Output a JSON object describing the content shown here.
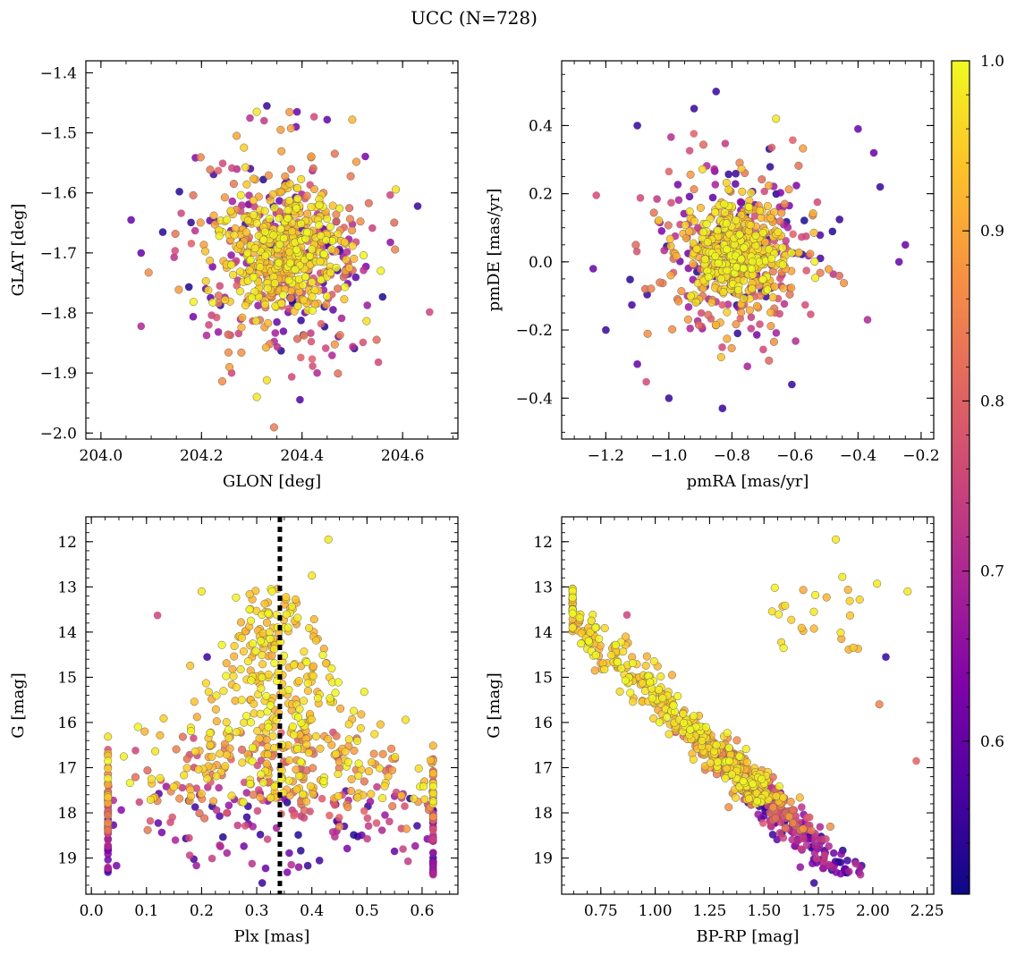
{
  "figure": {
    "title": "UCC (N=728)"
  },
  "colorbar": {
    "colormap": "plasma",
    "vmin": 0.51,
    "vmax": 1.0,
    "tick_labels": [
      "0.6",
      "0.7",
      "0.8",
      "0.9",
      "1.0"
    ],
    "ticks": [
      0.6,
      0.7,
      0.8,
      0.9,
      1.0
    ]
  },
  "chart_data": [
    {
      "type": "scatter",
      "id": "sky",
      "xlabel": "GLON [deg]",
      "ylabel": "GLAT [deg]",
      "xlim": [
        203.97,
        204.71
      ],
      "ylim": [
        -2.01,
        -1.38
      ],
      "xticks": [
        204.0,
        204.2,
        204.4,
        204.6
      ],
      "xtick_labels": [
        "204.0",
        "204.2",
        "204.4",
        "204.6"
      ],
      "yticks": [
        -2.0,
        -1.9,
        -1.8,
        -1.7,
        -1.6,
        -1.5,
        -1.4
      ],
      "ytick_labels": [
        "−2.0",
        "−1.9",
        "−1.8",
        "−1.7",
        "−1.6",
        "−1.5",
        "−1.4"
      ],
      "color_by": "membership probability",
      "n_points": 728,
      "center": [
        204.36,
        -1.7
      ],
      "points_sample": [
        {
          "x": 204.33,
          "y": -1.455,
          "p": 0.55
        },
        {
          "x": 204.39,
          "y": -1.465,
          "p": 0.6
        },
        {
          "x": 204.31,
          "y": -1.465,
          "p": 0.98
        },
        {
          "x": 204.5,
          "y": -1.478,
          "p": 0.92
        },
        {
          "x": 204.45,
          "y": -1.478,
          "p": 0.6
        },
        {
          "x": 204.06,
          "y": -1.645,
          "p": 0.6
        },
        {
          "x": 204.08,
          "y": -1.7,
          "p": 0.6
        },
        {
          "x": 204.08,
          "y": -1.822,
          "p": 0.7
        },
        {
          "x": 204.63,
          "y": -1.622,
          "p": 0.55
        },
        {
          "x": 204.31,
          "y": -1.94,
          "p": 0.98
        },
        {
          "x": 204.43,
          "y": -1.9,
          "p": 0.7
        },
        {
          "x": 204.26,
          "y": -1.9,
          "p": 0.75
        },
        {
          "x": 204.33,
          "y": -1.912,
          "p": 0.97
        },
        {
          "x": 204.27,
          "y": -1.505,
          "p": 0.9
        }
      ]
    },
    {
      "type": "scatter",
      "id": "propermotion",
      "xlabel": "pmRA [mas/yr]",
      "ylabel": "pmDE [mas/yr]",
      "xlim": [
        -1.34,
        -0.16
      ],
      "ylim": [
        -0.52,
        0.59
      ],
      "xticks": [
        -1.2,
        -1.0,
        -0.8,
        -0.6,
        -0.4,
        -0.2
      ],
      "xtick_labels": [
        "−1.2",
        "−1.0",
        "−0.8",
        "−0.6",
        "−0.4",
        "−0.2"
      ],
      "yticks": [
        -0.4,
        -0.2,
        0.0,
        0.2,
        0.4
      ],
      "ytick_labels": [
        "−0.4",
        "−0.2",
        "0.0",
        "0.2",
        "0.4"
      ],
      "color_by": "membership probability",
      "n_points": 728,
      "center": [
        -0.8,
        0.02
      ],
      "points_sample": [
        {
          "x": -0.85,
          "y": 0.5,
          "p": 0.55
        },
        {
          "x": -0.92,
          "y": 0.45,
          "p": 0.55
        },
        {
          "x": -1.1,
          "y": 0.4,
          "p": 0.55
        },
        {
          "x": -0.4,
          "y": 0.39,
          "p": 0.6
        },
        {
          "x": -0.66,
          "y": 0.42,
          "p": 0.98
        },
        {
          "x": -0.35,
          "y": 0.32,
          "p": 0.6
        },
        {
          "x": -0.33,
          "y": 0.22,
          "p": 0.55
        },
        {
          "x": -0.25,
          "y": 0.05,
          "p": 0.6
        },
        {
          "x": -0.27,
          "y": 0.0,
          "p": 0.6
        },
        {
          "x": -1.24,
          "y": -0.02,
          "p": 0.6
        },
        {
          "x": -1.2,
          "y": -0.2,
          "p": 0.55
        },
        {
          "x": -1.1,
          "y": -0.3,
          "p": 0.6
        },
        {
          "x": -1.0,
          "y": -0.4,
          "p": 0.55
        },
        {
          "x": -0.83,
          "y": -0.43,
          "p": 0.55
        },
        {
          "x": -0.61,
          "y": -0.36,
          "p": 0.55
        },
        {
          "x": -0.37,
          "y": -0.17,
          "p": 0.7
        }
      ]
    },
    {
      "type": "scatter",
      "id": "plx_mag",
      "xlabel": "Plx [mas]",
      "ylabel": "G [mag]",
      "xlim": [
        -0.01,
        0.665
      ],
      "ylim": [
        19.8,
        11.45
      ],
      "xticks": [
        0.0,
        0.1,
        0.2,
        0.3,
        0.4,
        0.5,
        0.6
      ],
      "xtick_labels": [
        "0.0",
        "0.1",
        "0.2",
        "0.3",
        "0.4",
        "0.5",
        "0.6"
      ],
      "yticks": [
        12,
        13,
        14,
        15,
        16,
        17,
        18,
        19
      ],
      "ytick_labels": [
        "12",
        "13",
        "14",
        "15",
        "16",
        "17",
        "18",
        "19"
      ],
      "vline_x": 0.342,
      "color_by": "membership probability",
      "n_points": 728,
      "points_sample": [
        {
          "x": 0.43,
          "y": 11.95,
          "p": 0.98
        },
        {
          "x": 0.4,
          "y": 12.75,
          "p": 0.98
        },
        {
          "x": 0.2,
          "y": 13.1,
          "p": 0.98
        },
        {
          "x": 0.12,
          "y": 13.63,
          "p": 0.75
        },
        {
          "x": 0.21,
          "y": 14.55,
          "p": 0.55
        },
        {
          "x": 0.04,
          "y": 18.27,
          "p": 0.6
        },
        {
          "x": 0.08,
          "y": 16.62,
          "p": 0.75
        },
        {
          "x": 0.61,
          "y": 17.82,
          "p": 0.75
        },
        {
          "x": 0.31,
          "y": 19.55,
          "p": 0.55
        },
        {
          "x": 0.55,
          "y": 18.85,
          "p": 0.6
        }
      ]
    },
    {
      "type": "scatter",
      "id": "cmd",
      "xlabel": "BP-RP [mag]",
      "ylabel": "G [mag]",
      "xlim": [
        0.57,
        2.28
      ],
      "ylim": [
        19.8,
        11.45
      ],
      "xticks": [
        0.75,
        1.0,
        1.25,
        1.5,
        1.75,
        2.0,
        2.25
      ],
      "xtick_labels": [
        "0.75",
        "1.00",
        "1.25",
        "1.50",
        "1.75",
        "2.00",
        "2.25"
      ],
      "yticks": [
        12,
        13,
        14,
        15,
        16,
        17,
        18,
        19
      ],
      "ytick_labels": [
        "12",
        "13",
        "14",
        "15",
        "16",
        "17",
        "18",
        "19"
      ],
      "color_by": "membership probability",
      "n_points": 728,
      "points_sample": [
        {
          "x": 1.83,
          "y": 11.95,
          "p": 0.98
        },
        {
          "x": 1.86,
          "y": 12.78,
          "p": 0.98
        },
        {
          "x": 2.02,
          "y": 12.93,
          "p": 0.98
        },
        {
          "x": 2.16,
          "y": 13.1,
          "p": 0.98
        },
        {
          "x": 0.87,
          "y": 13.62,
          "p": 0.75
        },
        {
          "x": 2.06,
          "y": 14.55,
          "p": 0.55
        },
        {
          "x": 2.2,
          "y": 16.85,
          "p": 0.8
        },
        {
          "x": 2.03,
          "y": 15.6,
          "p": 0.85
        },
        {
          "x": 1.73,
          "y": 19.55,
          "p": 0.55
        },
        {
          "x": 1.87,
          "y": 19.25,
          "p": 0.55
        },
        {
          "x": 0.66,
          "y": 14.25,
          "p": 0.98
        }
      ]
    }
  ]
}
